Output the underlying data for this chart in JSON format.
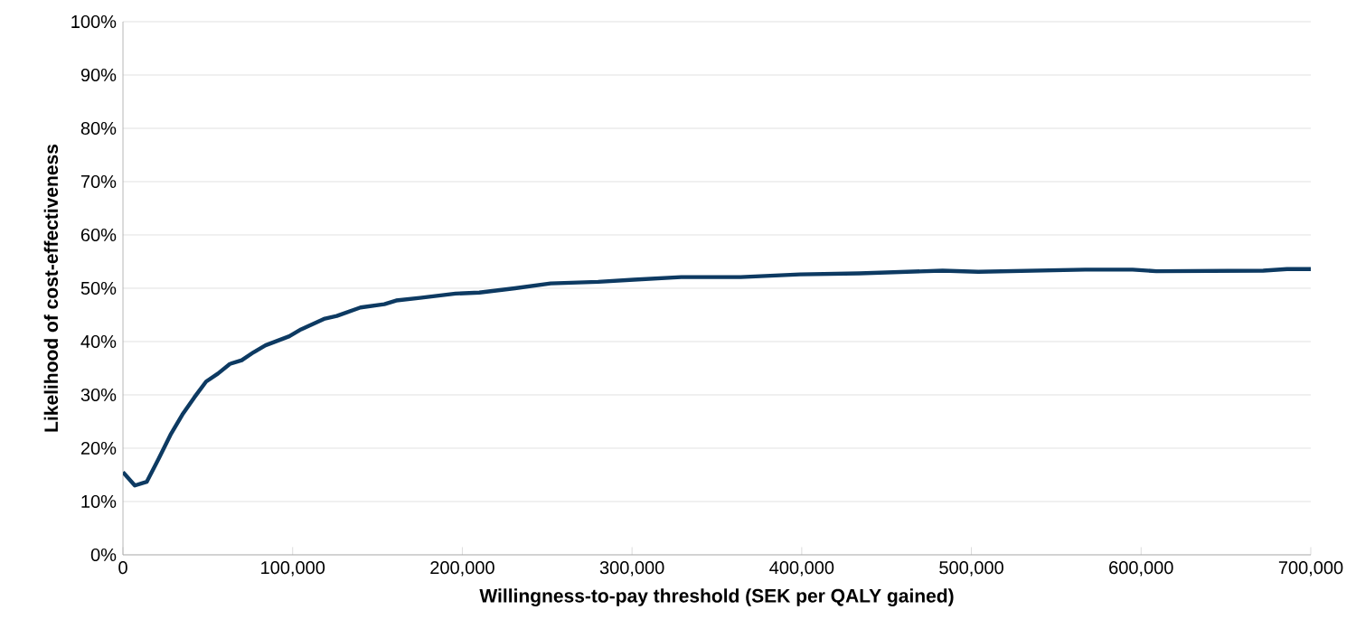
{
  "chart_data": {
    "type": "line",
    "xlabel": "Willingness-to-pay threshold (SEK per QALY gained)",
    "ylabel": "Likelihood of cost-effectiveness",
    "x": [
      0,
      7000,
      14000,
      21000,
      28000,
      35000,
      42000,
      49000,
      56000,
      63000,
      70000,
      77000,
      84000,
      98000,
      105000,
      112000,
      119000,
      126000,
      140000,
      154000,
      161000,
      175000,
      196000,
      210000,
      231000,
      252000,
      280000,
      301000,
      329000,
      364000,
      399000,
      434000,
      483000,
      504000,
      567000,
      595000,
      609000,
      672000,
      686000,
      700000
    ],
    "series": [
      {
        "color": "#0d3a62",
        "values": [
          15.5,
          13,
          13.7,
          18,
          22.5,
          26.3,
          29.5,
          32.5,
          34,
          35.8,
          36.5,
          38,
          39.3,
          41,
          42.3,
          43.3,
          44.3,
          44.8,
          46.4,
          47,
          47.7,
          48.2,
          49,
          49.2,
          50,
          50.9,
          51.2,
          51.6,
          52.1,
          52.1,
          52.6,
          52.8,
          53.3,
          53.1,
          53.5,
          53.5,
          53.2,
          53.3,
          53.6,
          53.6
        ]
      }
    ],
    "xlim": [
      0,
      700000
    ],
    "ylim": [
      0,
      100
    ],
    "xticks": [
      0,
      {
        "value": 100000,
        "label": "100,000"
      },
      {
        "value": 200000,
        "label": "200,000"
      },
      {
        "value": 300000,
        "label": "300,000"
      },
      {
        "value": 400000,
        "label": "400,000"
      },
      {
        "value": 500000,
        "label": "500,000"
      },
      {
        "value": 600000,
        "label": "600,000"
      },
      {
        "value": 700000,
        "label": "700,000"
      }
    ],
    "yticks": [
      {
        "value": 0,
        "label": "0%"
      },
      {
        "value": 10,
        "label": "10%"
      },
      {
        "value": 20,
        "label": "20%"
      },
      {
        "value": 30,
        "label": "30%"
      },
      {
        "value": 40,
        "label": "40%"
      },
      {
        "value": 50,
        "label": "50%"
      },
      {
        "value": 60,
        "label": "60%"
      },
      {
        "value": 70,
        "label": "70%"
      },
      {
        "value": 80,
        "label": "80%"
      },
      {
        "value": 90,
        "label": "90%"
      },
      {
        "value": 100,
        "label": "100%"
      }
    ],
    "grid": "y",
    "marker": "none",
    "line_style": "solid"
  }
}
